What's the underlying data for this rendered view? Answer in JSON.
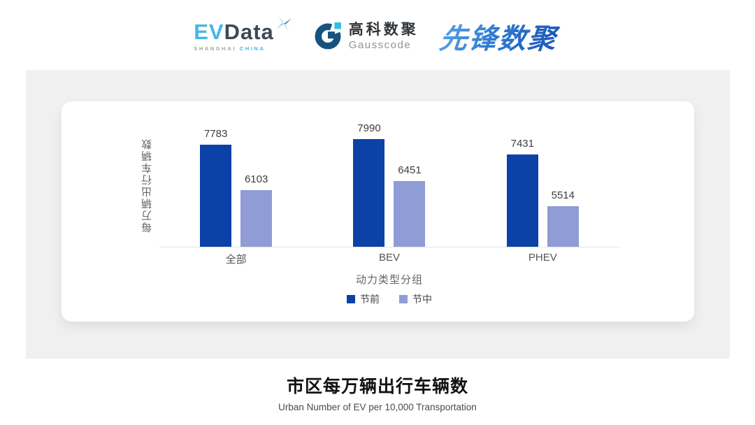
{
  "header": {
    "evdata": {
      "ev": "EV",
      "data": "Data",
      "tagline_left": "SHANGHAI",
      "tagline_right": "CHINA"
    },
    "gausscode": {
      "cn": "高科数聚",
      "en": "Gausscode"
    },
    "pioneer": {
      "text": "先锋数聚"
    }
  },
  "chart_data": {
    "type": "bar",
    "title": "市区每万辆出行车辆数",
    "subtitle": "Urban Number of EV per 10,000 Transportation",
    "categories": [
      "全部",
      "BEV",
      "PHEV"
    ],
    "series": [
      {
        "name": "节前",
        "color": "#0c41a8",
        "values": [
          7783,
          7990,
          7431
        ]
      },
      {
        "name": "节中",
        "color": "#8f9cd6",
        "values": [
          6103,
          6451,
          5514
        ]
      }
    ],
    "xlabel": "动力类型分组",
    "ylabel": "每万辆出行车辆数",
    "ylim": [
      4000,
      8800
    ],
    "grid": false,
    "legend_position": "bottom",
    "value_labels": true
  },
  "colors": {
    "panel_background": "#f0f0f1",
    "card_background": "#ffffff",
    "axis_line": "#e2e2e2",
    "evdata_cyan": "#47b5e6",
    "evdata_slate": "#3e4a57",
    "gausscode_navy": "#17527f",
    "gausscode_cyan": "#30c0d8",
    "pioneer_blue": "#2e7ad0"
  }
}
